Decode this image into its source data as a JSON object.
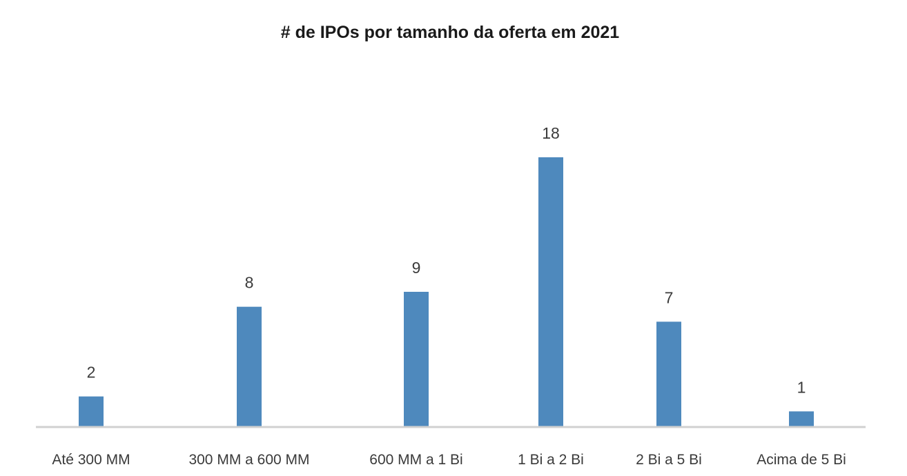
{
  "chart_data": {
    "type": "bar",
    "title": "# de IPOs por tamanho da oferta em 2021",
    "xlabel": "",
    "ylabel": "",
    "categories": [
      "Até 300 MM",
      "300 MM a 600 MM",
      "600 MM a 1 Bi",
      "1 Bi a 2 Bi",
      "2 Bi a 5 Bi",
      "Acima de 5 Bi"
    ],
    "values": [
      2,
      8,
      9,
      18,
      7,
      1
    ],
    "data_labels": [
      "2",
      "8",
      "9",
      "18",
      "7",
      "1"
    ],
    "ylim": [
      0,
      18
    ],
    "grid": false,
    "legend": "none",
    "colors": {
      "bar": "#4e89bd",
      "axis": "#d0d0d0",
      "text": "#3a3a3a",
      "title": "#1a1a1a"
    }
  }
}
